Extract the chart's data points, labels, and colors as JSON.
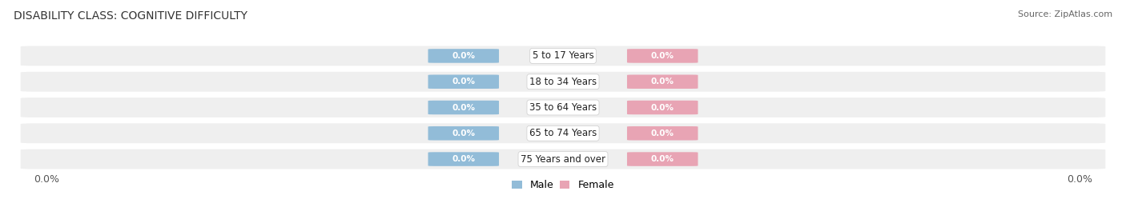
{
  "title": "DISABILITY CLASS: COGNITIVE DIFFICULTY",
  "source_text": "Source: ZipAtlas.com",
  "categories": [
    "5 to 17 Years",
    "18 to 34 Years",
    "35 to 64 Years",
    "65 to 74 Years",
    "75 Years and over"
  ],
  "male_values": [
    0.0,
    0.0,
    0.0,
    0.0,
    0.0
  ],
  "female_values": [
    0.0,
    0.0,
    0.0,
    0.0,
    0.0
  ],
  "male_color": "#92bcd8",
  "female_color": "#e8a4b4",
  "bar_bg_color": "#efefef",
  "axis_label_left": "0.0%",
  "axis_label_right": "0.0%",
  "title_fontsize": 10,
  "source_fontsize": 8,
  "legend_fontsize": 9,
  "tick_fontsize": 9,
  "cat_fontsize": 8.5,
  "chip_fontsize": 7.5,
  "background_color": "#ffffff",
  "figsize": [
    14.06,
    2.69
  ],
  "dpi": 100
}
